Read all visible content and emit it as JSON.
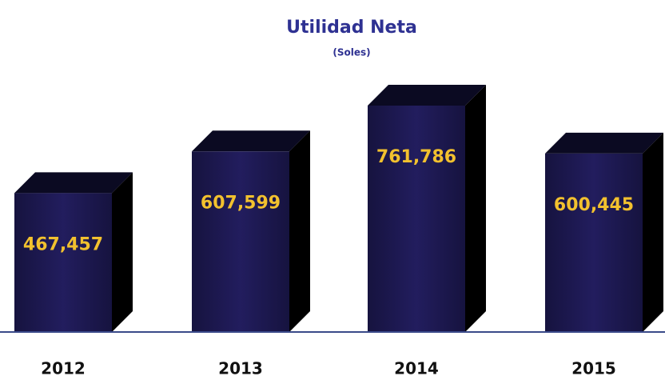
{
  "chart_data": {
    "type": "bar",
    "title": "Utilidad Neta",
    "subtitle": "(Soles)",
    "categories": [
      "2012",
      "2013",
      "2014",
      "2015"
    ],
    "values": [
      467457,
      607599,
      761786,
      600445
    ],
    "value_labels": [
      "467,457",
      "607,599",
      "761,786",
      "600,445"
    ],
    "color": "#1c1850"
  }
}
